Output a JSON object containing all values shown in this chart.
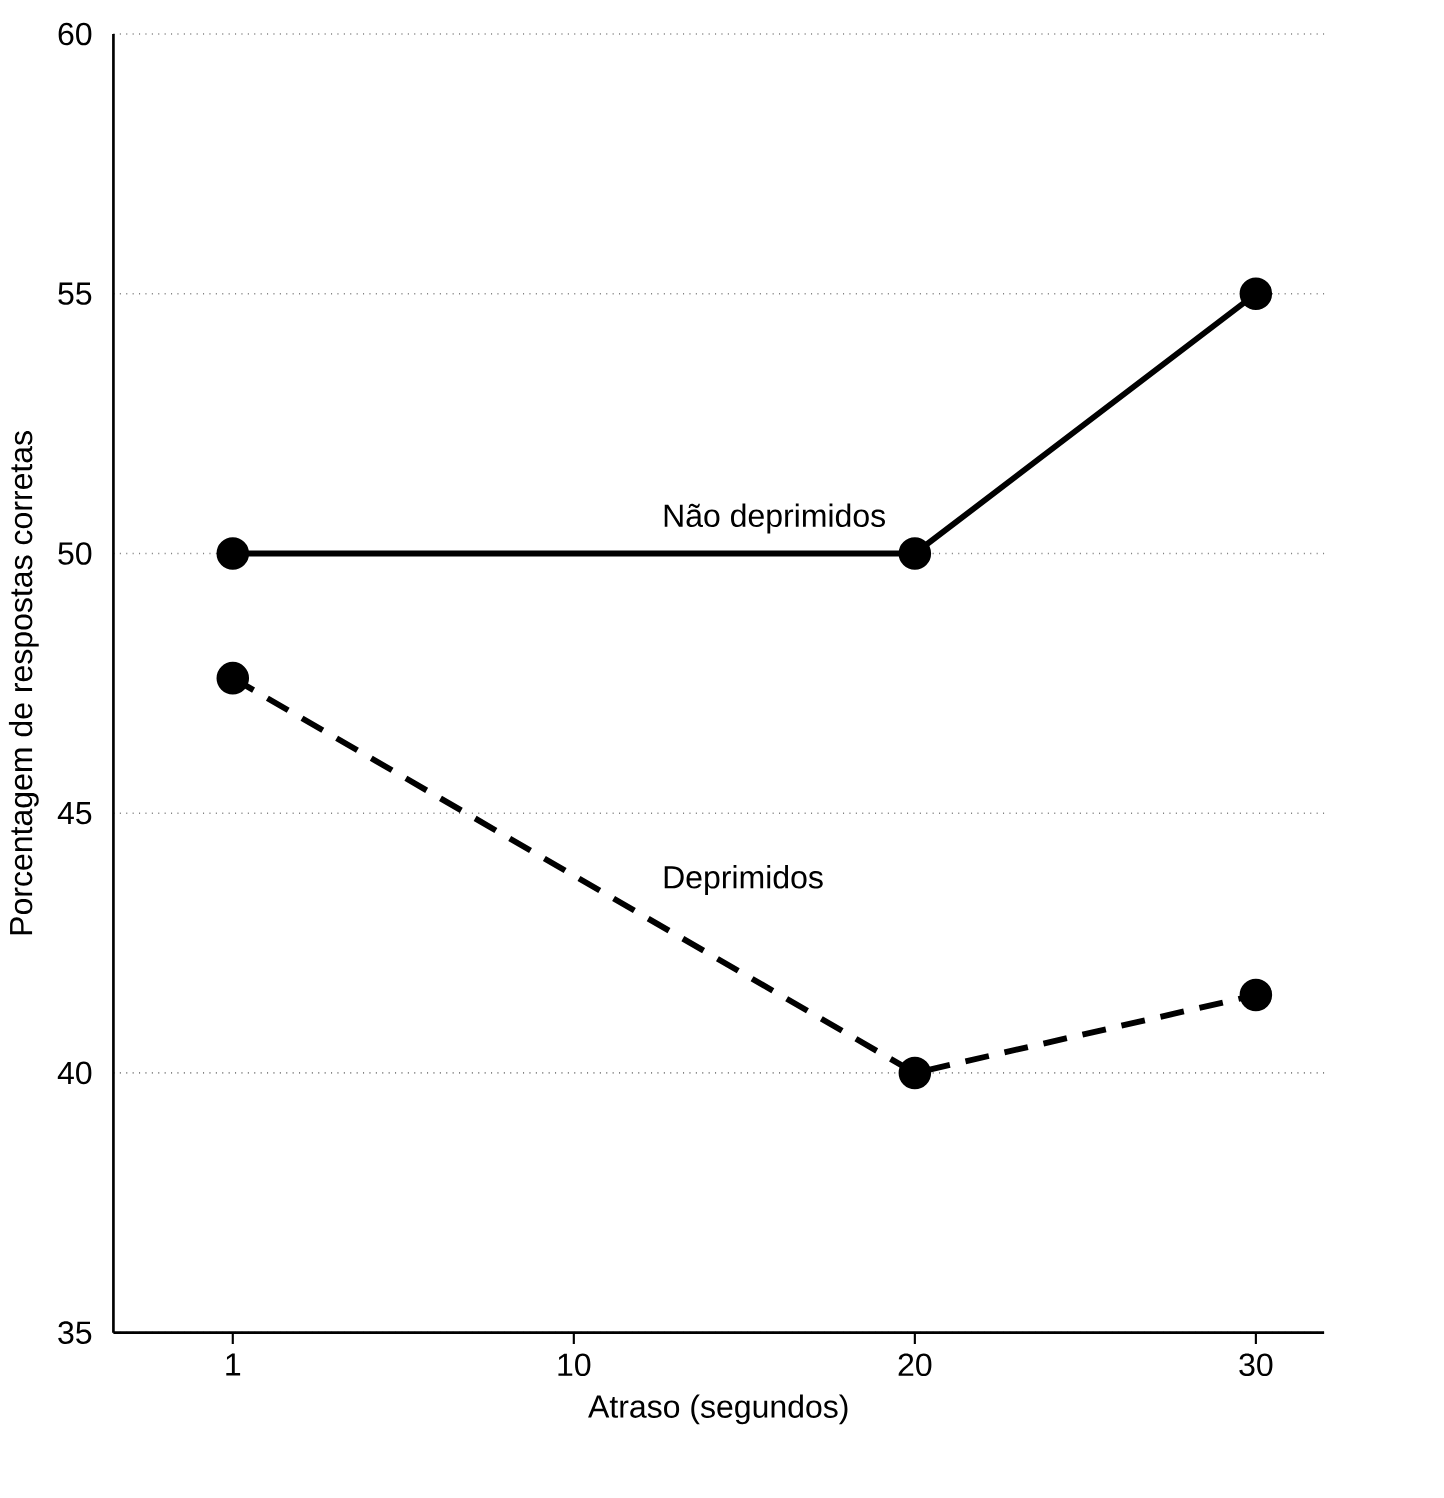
{
  "chart_data": {
    "type": "line",
    "xlabel": "Atraso (segundos)",
    "ylabel": "Porcentagem de respostas corretas",
    "categories": [
      "1",
      "10",
      "20",
      "30"
    ],
    "series": [
      {
        "name": "Não deprimidos",
        "color": "#000000",
        "values": [
          50,
          null,
          50,
          55
        ],
        "line_style": "solid"
      },
      {
        "name": "Deprimidos",
        "color": "#000000",
        "values": [
          47.6,
          null,
          40,
          41.5
        ],
        "line_style": "dashed"
      }
    ],
    "ylim": [
      35,
      60
    ],
    "yticks": [
      35,
      40,
      45,
      50,
      55,
      60
    ],
    "grid": "y",
    "marker": "circle",
    "legend": false
  }
}
